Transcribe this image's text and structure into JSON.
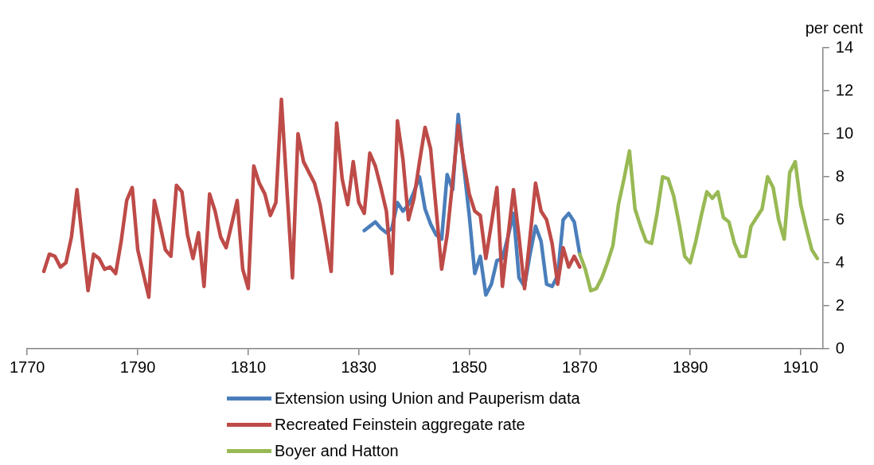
{
  "chart_data": {
    "type": "line",
    "ylabel": "per cent",
    "xlim": [
      1770,
      1914
    ],
    "xticks": [
      1770,
      1790,
      1810,
      1830,
      1850,
      1870,
      1890,
      1910
    ],
    "ylim": [
      0,
      14
    ],
    "yticks": [
      0,
      2,
      4,
      6,
      8,
      10,
      12,
      14
    ],
    "grid": false,
    "legend": "bottom",
    "marker": "none",
    "line_style": "solid",
    "series": [
      {
        "name": "Extension using Union and Pauperism data",
        "color": "#4a7ebb",
        "x": [
          1831,
          1832,
          1833,
          1834,
          1835,
          1836,
          1837,
          1838,
          1839,
          1840,
          1841,
          1842,
          1843,
          1844,
          1845,
          1846,
          1847,
          1848,
          1849,
          1850,
          1851,
          1852,
          1853,
          1854,
          1855,
          1856,
          1857,
          1858,
          1859,
          1860,
          1861,
          1862,
          1863,
          1864,
          1865,
          1866,
          1867,
          1868,
          1869,
          1870
        ],
        "values": [
          5.5,
          5.7,
          5.9,
          5.6,
          5.4,
          5.6,
          6.8,
          6.4,
          6.7,
          7.3,
          8.0,
          6.5,
          5.8,
          5.3,
          5.1,
          8.1,
          7.4,
          10.9,
          8.5,
          6.2,
          3.5,
          4.3,
          2.5,
          3.0,
          4.1,
          4.2,
          5.2,
          6.3,
          3.3,
          2.9,
          4.4,
          5.7,
          5.0,
          3.0,
          2.9,
          3.4,
          6.0,
          6.3,
          5.9,
          4.4
        ]
      },
      {
        "name": "Recreated Feinstein aggregate rate",
        "color": "#be4b48",
        "x": [
          1773,
          1774,
          1775,
          1776,
          1777,
          1778,
          1779,
          1780,
          1781,
          1782,
          1783,
          1784,
          1785,
          1786,
          1787,
          1788,
          1789,
          1790,
          1791,
          1792,
          1793,
          1794,
          1795,
          1796,
          1797,
          1798,
          1799,
          1800,
          1801,
          1802,
          1803,
          1804,
          1805,
          1806,
          1807,
          1808,
          1809,
          1810,
          1811,
          1812,
          1813,
          1814,
          1815,
          1816,
          1817,
          1818,
          1819,
          1820,
          1821,
          1822,
          1823,
          1824,
          1825,
          1826,
          1827,
          1828,
          1829,
          1830,
          1831,
          1832,
          1833,
          1834,
          1835,
          1836,
          1837,
          1838,
          1839,
          1840,
          1841,
          1842,
          1843,
          1844,
          1845,
          1846,
          1847,
          1848,
          1849,
          1850,
          1851,
          1852,
          1853,
          1854,
          1855,
          1856,
          1857,
          1858,
          1859,
          1860,
          1861,
          1862,
          1863,
          1864,
          1865,
          1866,
          1867,
          1868,
          1869,
          1870
        ],
        "values": [
          3.6,
          4.4,
          4.3,
          3.8,
          4.0,
          5.2,
          7.4,
          5.0,
          2.7,
          4.4,
          4.2,
          3.7,
          3.8,
          3.5,
          5.0,
          6.9,
          7.5,
          4.6,
          3.5,
          2.4,
          6.9,
          5.8,
          4.6,
          4.3,
          7.6,
          7.3,
          5.3,
          4.2,
          5.4,
          2.9,
          7.2,
          6.4,
          5.2,
          4.7,
          5.8,
          6.9,
          3.7,
          2.8,
          8.5,
          7.7,
          7.2,
          6.2,
          6.8,
          11.6,
          7.4,
          3.3,
          10.0,
          8.7,
          8.2,
          7.7,
          6.7,
          5.2,
          3.6,
          10.5,
          7.9,
          6.7,
          8.7,
          6.8,
          6.3,
          9.1,
          8.5,
          7.5,
          6.4,
          3.5,
          10.6,
          8.8,
          6.0,
          7.0,
          8.7,
          10.3,
          9.3,
          6.5,
          3.7,
          5.3,
          7.8,
          10.4,
          8.7,
          7.2,
          6.4,
          6.2,
          4.2,
          5.8,
          7.5,
          2.9,
          5.2,
          7.4,
          5.2,
          2.8,
          5.2,
          7.7,
          6.4,
          6.0,
          4.9,
          3.0,
          4.7,
          3.8,
          4.3,
          3.8
        ]
      },
      {
        "name": "Boyer and Hatton",
        "color": "#98b954",
        "x": [
          1870,
          1871,
          1872,
          1873,
          1874,
          1875,
          1876,
          1877,
          1878,
          1879,
          1880,
          1881,
          1882,
          1883,
          1884,
          1885,
          1886,
          1887,
          1888,
          1889,
          1890,
          1891,
          1892,
          1893,
          1894,
          1895,
          1896,
          1897,
          1898,
          1899,
          1900,
          1901,
          1902,
          1903,
          1904,
          1905,
          1906,
          1907,
          1908,
          1909,
          1910,
          1911,
          1912,
          1913
        ],
        "values": [
          4.4,
          3.7,
          2.7,
          2.8,
          3.3,
          4.0,
          4.8,
          6.7,
          7.9,
          9.2,
          6.5,
          5.7,
          5.0,
          4.9,
          6.3,
          8.0,
          7.9,
          7.1,
          5.8,
          4.3,
          4.0,
          5.0,
          6.2,
          7.3,
          7.0,
          7.3,
          6.1,
          5.9,
          4.9,
          4.3,
          4.3,
          5.7,
          6.1,
          6.5,
          8.0,
          7.5,
          6.0,
          5.1,
          8.2,
          8.7,
          6.7,
          5.6,
          4.6,
          4.2
        ]
      }
    ]
  }
}
